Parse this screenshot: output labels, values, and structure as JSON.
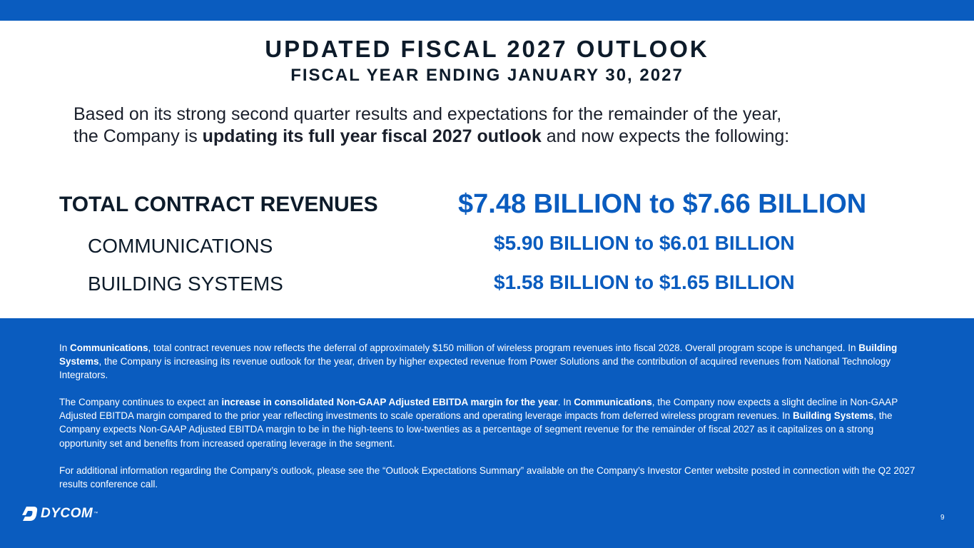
{
  "header": {
    "title": "UPDATED FISCAL 2027 OUTLOOK",
    "subtitle": "FISCAL YEAR ENDING JANUARY 30, 2027"
  },
  "intro": {
    "line1": "Based on its strong second quarter results and expectations for the remainder of the year,",
    "line2_pre": "the Company is ",
    "line2_bold": "updating its full year fiscal 2027 outlook",
    "line2_post": " and now expects the following:"
  },
  "outlook": {
    "total": {
      "label": "TOTAL CONTRACT REVENUES",
      "value": "$7.48 BILLION to $7.66 BILLION"
    },
    "communications": {
      "label": "COMMUNICATIONS",
      "value": "$5.90 BILLION to $6.01 BILLION"
    },
    "building_systems": {
      "label": "BUILDING SYSTEMS",
      "value": "$1.58 BILLION to $1.65 BILLION"
    }
  },
  "notes": {
    "p1": {
      "s1": "In ",
      "b1": "Communications",
      "s2": ", total contract revenues now reflects the deferral of approximately $150 million of wireless program revenues into fiscal 2028. Overall program scope is unchanged. In ",
      "b2": "Building Systems",
      "s3": ", the Company is increasing its revenue outlook for the year, driven by higher expected revenue from Power Solutions and the contribution of acquired revenues from National Technology Integrators."
    },
    "p2": {
      "s1": "The Company continues to expect an ",
      "b1": "increase in consolidated Non-GAAP Adjusted EBITDA margin for the year",
      "s2": ". In ",
      "b2": "Communications",
      "s3": ", the Company now expects a slight decline in Non-GAAP Adjusted EBITDA margin compared to the prior year reflecting investments to scale operations and operating leverage impacts from deferred wireless program revenues. In ",
      "b3": "Building Systems",
      "s4": ", the Company expects Non-GAAP Adjusted EBITDA margin to be in the high-teens to low-twenties as a percentage of segment revenue for the remainder of fiscal 2027 as it capitalizes on a strong opportunity set and benefits from increased operating leverage in the segment."
    },
    "p3": {
      "s1": "For additional information regarding the Company’s outlook, please see the “Outlook Expectations Summary” available on the Company’s Investor Center website posted in connection with the Q2 2027 results conference call."
    }
  },
  "footer": {
    "logo_text": "DYCOM",
    "logo_tm": "™",
    "page_number": "9"
  },
  "colors": {
    "brand_blue": "#0a5cbf",
    "dark_text": "#0d1b2a"
  }
}
